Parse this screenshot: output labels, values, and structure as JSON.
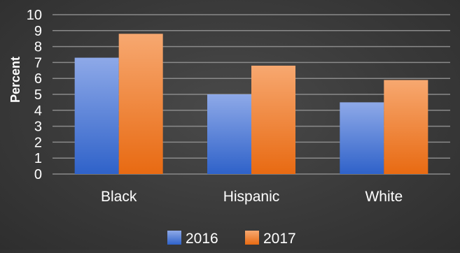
{
  "chart_data": {
    "type": "bar",
    "title": "",
    "xlabel": "",
    "ylabel": "Percent",
    "ylim": [
      0,
      10
    ],
    "yticks": [
      0,
      1,
      2,
      3,
      4,
      5,
      6,
      7,
      8,
      9,
      10
    ],
    "grid": true,
    "legend_position": "bottom",
    "categories": [
      "Black",
      "Hispanic",
      "White"
    ],
    "series": [
      {
        "name": "2016",
        "values": [
          7.3,
          5.0,
          4.5
        ],
        "color": "#4472c4"
      },
      {
        "name": "2017",
        "values": [
          8.8,
          6.8,
          5.9
        ],
        "color": "#ed7d31"
      }
    ]
  }
}
